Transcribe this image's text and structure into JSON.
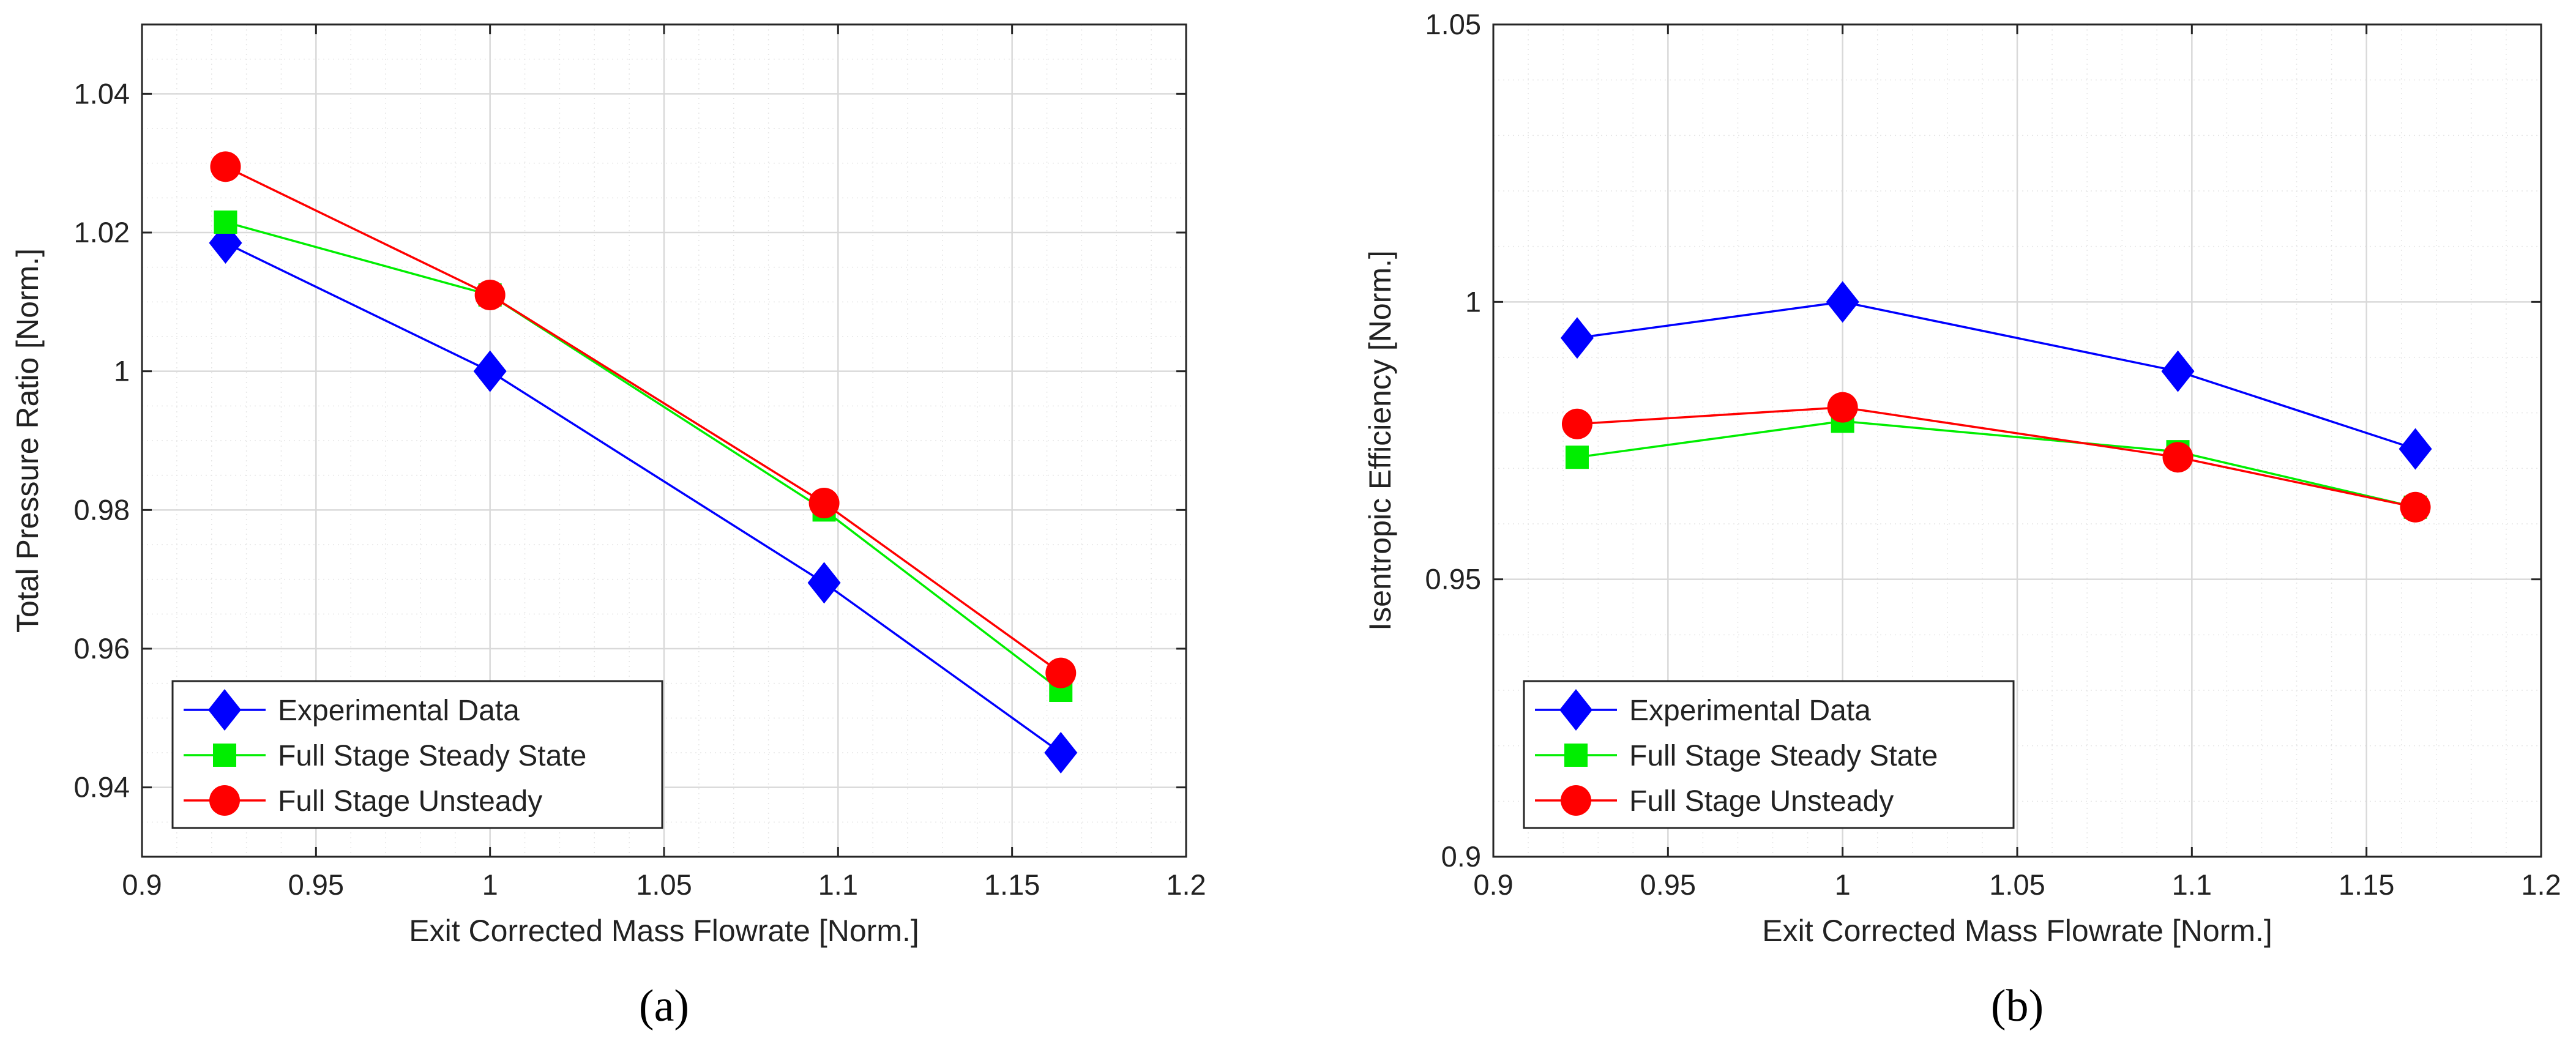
{
  "colors": {
    "experimental": "#0000ff",
    "steady": "#00ee00",
    "unsteady": "#ff0000",
    "grid": "#d9d9d9",
    "axes": "#262626"
  },
  "chart_data": [
    {
      "type": "line",
      "caption": "(a)",
      "title": "",
      "xlabel": "Exit Corrected Mass Flowrate [Norm.]",
      "ylabel": "Total Pressure Ratio [Norm.]",
      "xlim": [
        0.9,
        1.2
      ],
      "ylim": [
        0.93,
        1.05
      ],
      "xticks": [
        0.9,
        0.95,
        1,
        1.05,
        1.1,
        1.15,
        1.2
      ],
      "xtick_labels": [
        "0.9",
        "0.95",
        "1",
        "1.05",
        "1.1",
        "1.15",
        "1.2"
      ],
      "yticks": [
        0.94,
        0.96,
        0.98,
        1,
        1.02,
        1.04
      ],
      "ytick_labels": [
        "0.94",
        "0.96",
        "0.98",
        "1",
        "1.02",
        "1.04"
      ],
      "grid": true,
      "legend_position": "bottom-left",
      "series": [
        {
          "name": "Experimental Data",
          "marker": "diamond",
          "color_key": "experimental",
          "x": [
            0.924,
            1.0,
            1.096,
            1.164
          ],
          "y": [
            1.0185,
            1.0,
            0.9695,
            0.945
          ]
        },
        {
          "name": "Full Stage Steady State",
          "marker": "square",
          "color_key": "steady",
          "x": [
            0.924,
            1.0,
            1.096,
            1.164
          ],
          "y": [
            1.0215,
            1.011,
            0.98,
            0.954
          ]
        },
        {
          "name": "Full Stage Unsteady",
          "marker": "circle",
          "color_key": "unsteady",
          "x": [
            0.924,
            1.0,
            1.096,
            1.164
          ],
          "y": [
            1.0295,
            1.011,
            0.981,
            0.9565
          ]
        }
      ]
    },
    {
      "type": "line",
      "caption": "(b)",
      "title": "",
      "xlabel": "Exit Corrected Mass Flowrate [Norm.]",
      "ylabel": "Isentropic Efficiency [Norm.]",
      "xlim": [
        0.9,
        1.2
      ],
      "ylim": [
        0.9,
        1.05
      ],
      "xticks": [
        0.9,
        0.95,
        1,
        1.05,
        1.1,
        1.15,
        1.2
      ],
      "xtick_labels": [
        "0.9",
        "0.95",
        "1",
        "1.05",
        "1.1",
        "1.15",
        "1.2"
      ],
      "yticks": [
        0.9,
        0.95,
        1,
        1.05
      ],
      "ytick_labels": [
        "0.9",
        "0.95",
        "1",
        "1.05"
      ],
      "grid": true,
      "legend_position": "bottom-left",
      "series": [
        {
          "name": "Experimental Data",
          "marker": "diamond",
          "color_key": "experimental",
          "x": [
            0.924,
            1.0,
            1.096,
            1.164
          ],
          "y": [
            0.9935,
            1.0,
            0.9875,
            0.9735
          ]
        },
        {
          "name": "Full Stage Steady State",
          "marker": "square",
          "color_key": "steady",
          "x": [
            0.924,
            1.0,
            1.096,
            1.164
          ],
          "y": [
            0.972,
            0.9785,
            0.973,
            0.963
          ]
        },
        {
          "name": "Full Stage Unsteady",
          "marker": "circle",
          "color_key": "unsteady",
          "x": [
            0.924,
            1.0,
            1.096,
            1.164
          ],
          "y": [
            0.978,
            0.981,
            0.972,
            0.963
          ]
        }
      ]
    }
  ]
}
